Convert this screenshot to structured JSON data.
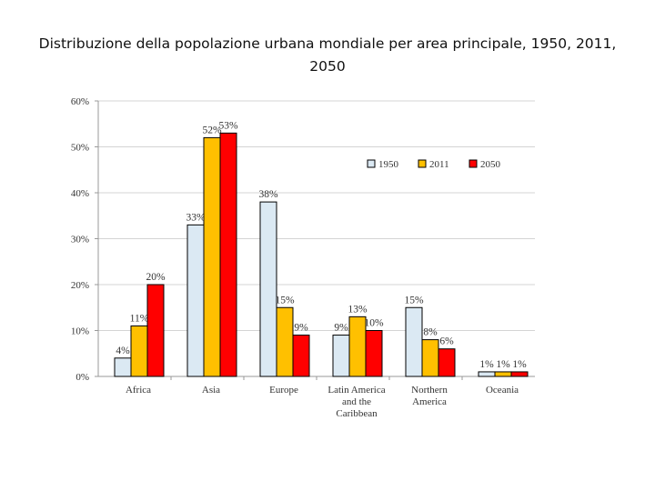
{
  "title": "Distribuzione della popolazione urbana mondiale per area principale, 1950, 2011, 2050",
  "chart_data": {
    "type": "bar",
    "title": "Distribuzione della popolazione urbana mondiale per area principale, 1950, 2011, 2050",
    "categories": [
      [
        "Africa"
      ],
      [
        "Asia"
      ],
      [
        "Europe"
      ],
      [
        "Latin America",
        "and the",
        "Caribbean"
      ],
      [
        "Northern",
        "America"
      ],
      [
        "Oceania"
      ]
    ],
    "series": [
      {
        "name": "1950",
        "color": "#dbe9f3",
        "values": [
          4,
          33,
          38,
          9,
          15,
          1
        ],
        "labels": [
          "4%",
          "33%",
          "38%",
          "9%",
          "15%",
          "1%"
        ]
      },
      {
        "name": "2011",
        "color": "#ffc000",
        "values": [
          11,
          52,
          15,
          13,
          8,
          1
        ],
        "labels": [
          "11%",
          "52%",
          "15%",
          "13%",
          "8%",
          "1%"
        ]
      },
      {
        "name": "2050",
        "color": "#ff0000",
        "values": [
          20,
          53,
          9,
          10,
          6,
          1
        ],
        "labels": [
          "20%",
          "53%",
          "9%",
          "10%",
          "6%",
          "1%"
        ]
      }
    ],
    "ylim": [
      0,
      60
    ],
    "yticks": [
      "0%",
      "10%",
      "20%",
      "30%",
      "40%",
      "50%",
      "60%"
    ],
    "grid": true,
    "legend_position": "top-right"
  }
}
